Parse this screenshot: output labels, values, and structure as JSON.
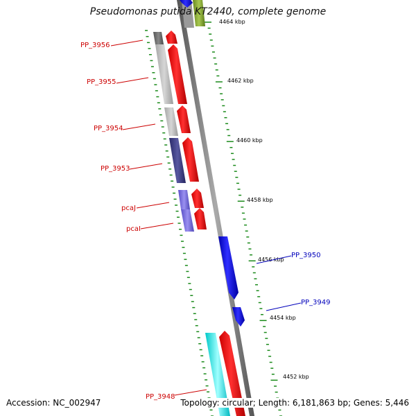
{
  "title": "Pseudomonas putida KT2440, complete genome",
  "accession": "Accession: NC_002947",
  "topology": "Topology: circular; Length: 6,181,863 bp; Genes: 5,446",
  "colors": {
    "forward_gene": "#ff0000",
    "reverse_gene": "#0000ff",
    "gene_label_forward": "#cc0000",
    "gene_label_reverse": "#0000bb",
    "tick": "#1a8a1a",
    "backbone": "#777777"
  },
  "scale_labels": [
    "4464 kbp",
    "4462 kbp",
    "4460 kbp",
    "4458 kbp",
    "4456 kbp",
    "4454 kbp",
    "4452 kbp"
  ],
  "gene_labels": [
    "PP_3956",
    "PP_3955",
    "PP_3954",
    "PP_3953",
    "pcaJ",
    "pcaI",
    "PP_3950",
    "PP_3949",
    "PP_3948"
  ]
}
